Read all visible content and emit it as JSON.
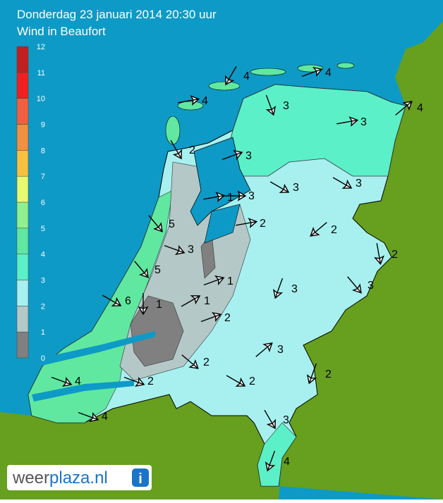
{
  "header": {
    "title": "Donderdag 23 januari 2014 20:30 uur",
    "subtitle": "Wind in Beaufort"
  },
  "legend": {
    "labels": [
      0,
      1,
      2,
      3,
      4,
      5,
      6,
      7,
      8,
      9,
      10,
      11,
      12
    ]
  },
  "wind": {
    "labels": [
      4,
      4,
      4,
      3,
      4,
      3,
      2,
      3,
      3,
      3,
      3,
      1,
      2,
      5,
      2,
      3,
      2,
      5,
      1,
      3,
      3,
      6,
      1,
      1,
      2,
      3,
      2,
      2,
      2,
      4,
      2,
      4,
      3,
      4
    ]
  },
  "logo": {
    "prefix": "weer",
    "suffix": "plaza.nl",
    "icon": "i"
  }
}
